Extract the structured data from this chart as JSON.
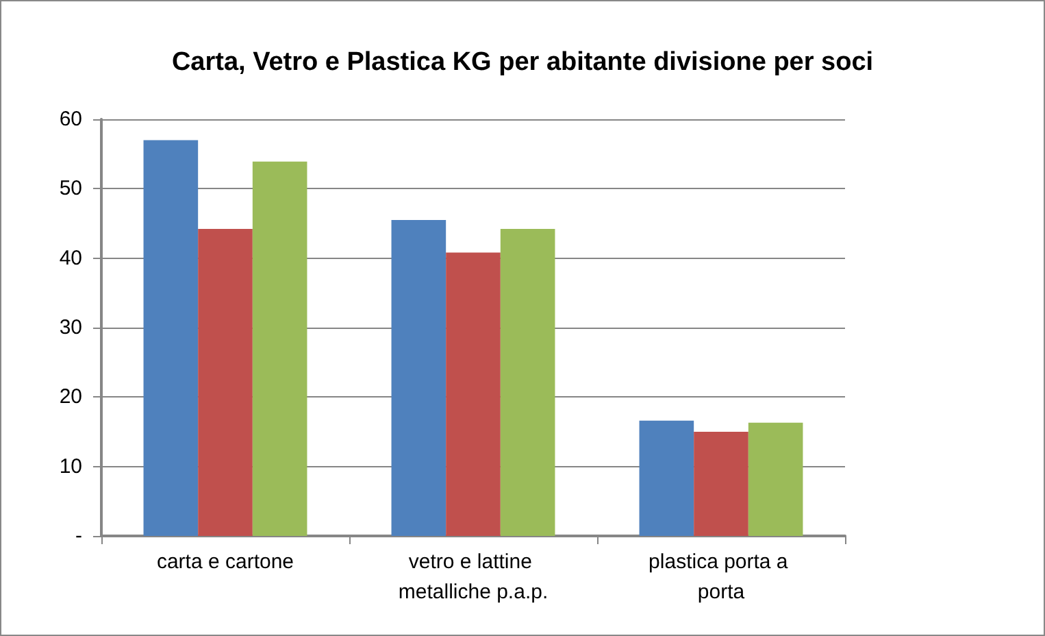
{
  "chart_data": {
    "type": "bar",
    "title": "Carta, Vetro e Plastica KG per abitante divisione per soci",
    "categories": [
      "carta e cartone",
      "vetro e lattine metalliche p.a.p.",
      "plastica porta a porta"
    ],
    "series": [
      {
        "color": "#4f81bd",
        "values": [
          57.0,
          45.5,
          16.6
        ]
      },
      {
        "color": "#c0504d",
        "values": [
          44.2,
          40.8,
          15.0
        ]
      },
      {
        "color": "#9bbb59",
        "values": [
          53.9,
          44.2,
          16.3
        ]
      }
    ],
    "ylim": [
      0,
      60
    ],
    "yticks": [
      {
        "value": 0,
        "label": "-"
      },
      10,
      20,
      30,
      40,
      50,
      60
    ],
    "grid": "y"
  }
}
